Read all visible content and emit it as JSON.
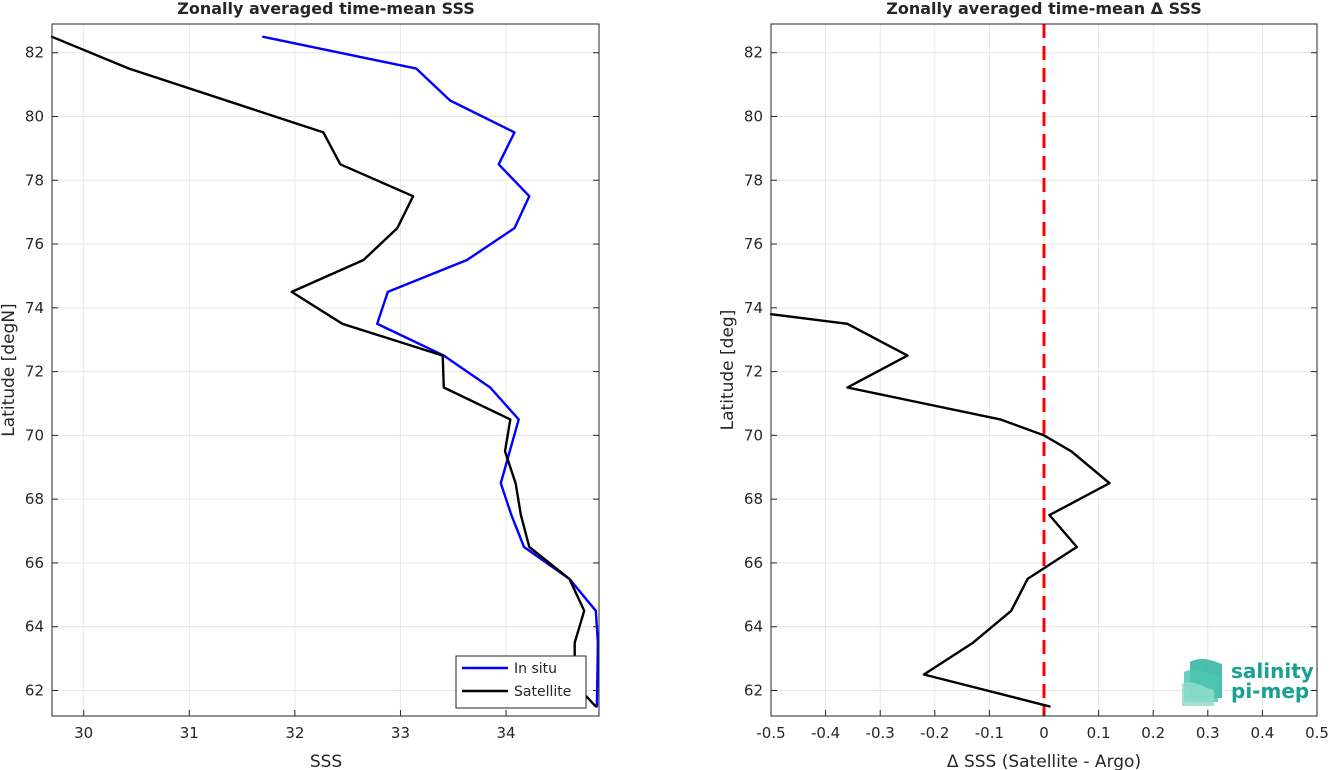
{
  "chart_data": [
    {
      "type": "line",
      "title": "Zonally averaged time-mean SSS",
      "xlabel": "SSS",
      "ylabel": "Latitude [degN]",
      "xlim": [
        29.7,
        34.88
      ],
      "ylim": [
        61.2,
        82.9
      ],
      "xticks": [
        30,
        31,
        32,
        33,
        34
      ],
      "yticks": [
        62,
        64,
        66,
        68,
        70,
        72,
        74,
        76,
        78,
        80,
        82
      ],
      "grid": true,
      "legend": "bottom-right",
      "series": [
        {
          "name": "In situ",
          "color": "#0000ff",
          "x": [
            31.7,
            33.15,
            33.47,
            34.08,
            33.93,
            34.22,
            34.08,
            33.63,
            32.88,
            32.78,
            33.41,
            33.85,
            34.12,
            33.95,
            34.05,
            34.17,
            34.6,
            34.85,
            34.87,
            34.86
          ],
          "y": [
            82.5,
            81.5,
            80.5,
            79.5,
            78.5,
            77.5,
            76.5,
            75.5,
            74.5,
            73.5,
            72.5,
            71.5,
            70.5,
            68.5,
            67.5,
            66.5,
            65.5,
            64.5,
            63.5,
            61.5
          ]
        },
        {
          "name": "Satellite",
          "color": "#000000",
          "x": [
            29.7,
            30.43,
            32.27,
            32.43,
            33.12,
            32.97,
            32.65,
            31.97,
            32.45,
            33.4,
            33.41,
            34.04,
            33.99,
            34.09,
            34.14,
            34.22,
            34.6,
            34.74,
            34.65,
            34.65,
            34.85
          ],
          "y": [
            82.5,
            81.5,
            79.5,
            78.5,
            77.5,
            76.5,
            75.5,
            74.5,
            73.5,
            72.5,
            71.5,
            70.5,
            69.5,
            68.5,
            67.5,
            66.5,
            65.5,
            64.5,
            63.5,
            62.2,
            61.5
          ]
        }
      ]
    },
    {
      "type": "line",
      "title": "Zonally averaged time-mean Δ SSS",
      "xlabel": "Δ SSS (Satellite - Argo)",
      "ylabel": "Latitude [deg]",
      "xlim": [
        -0.5,
        0.5
      ],
      "ylim": [
        61.2,
        82.9
      ],
      "xticks": [
        -0.5,
        -0.4,
        -0.3,
        -0.2,
        -0.1,
        0,
        0.1,
        0.2,
        0.3,
        0.4,
        0.5
      ],
      "xticklabels": [
        "-0.5",
        "-0.4",
        "-0.3",
        "-0.2",
        "-0.1",
        "0",
        "0.1",
        "0.2",
        "0.3",
        "0.4",
        "0.5"
      ],
      "yticks": [
        62,
        64,
        66,
        68,
        70,
        72,
        74,
        76,
        78,
        80,
        82
      ],
      "grid": true,
      "reference_line": {
        "x": 0,
        "color": "#ff0000",
        "style": "dashed"
      },
      "series": [
        {
          "color": "#000000",
          "x": [
            -0.5,
            -0.36,
            -0.25,
            -0.36,
            -0.08,
            0.0,
            0.05,
            0.12,
            0.01,
            0.06,
            -0.03,
            -0.06,
            -0.13,
            -0.22,
            0.01
          ],
          "y": [
            73.8,
            73.5,
            72.5,
            71.5,
            70.5,
            70.0,
            69.5,
            68.5,
            67.5,
            66.5,
            65.5,
            64.5,
            63.5,
            62.5,
            61.5
          ]
        }
      ]
    }
  ],
  "logo": {
    "line1": "salinity",
    "line2": "pi-mep",
    "color": "#1aa090"
  }
}
